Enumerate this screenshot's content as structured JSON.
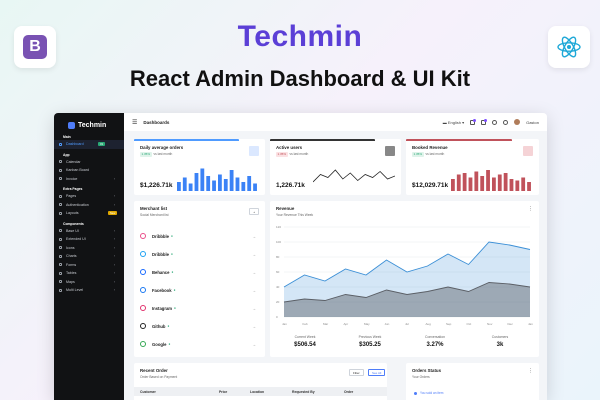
{
  "hero": {
    "title": "Techmin",
    "subtitle": "React Admin Dashboard & UI Kit"
  },
  "colors": {
    "accent": "#5b3fd6",
    "primary": "#4f7df9",
    "sidebar": "#111214",
    "bootstrap": "#7952b3",
    "react": "#1ea8d7",
    "danger": "#c0525b"
  },
  "corner_icons": [
    "bootstrap-icon",
    "react-icon"
  ],
  "sidebar": {
    "brand": "Techmin",
    "sections": [
      {
        "title": "Main",
        "items": [
          {
            "label": "Dashboard",
            "active": true,
            "badge": "03"
          }
        ]
      },
      {
        "title": "App",
        "items": [
          {
            "label": "Calendar"
          },
          {
            "label": "Kanban Board"
          },
          {
            "label": "Invoice",
            "chevron": true
          }
        ]
      },
      {
        "title": "Extra Pages",
        "items": [
          {
            "label": "Pages",
            "chevron": true
          },
          {
            "label": "Authentication",
            "chevron": true
          },
          {
            "label": "Layouts",
            "badge": "New"
          }
        ]
      },
      {
        "title": "Components",
        "items": [
          {
            "label": "Base UI",
            "chevron": true
          },
          {
            "label": "Extended UI",
            "chevron": true
          },
          {
            "label": "Icons",
            "chevron": true
          },
          {
            "label": "Charts",
            "chevron": true
          },
          {
            "label": "Forms",
            "chevron": true
          },
          {
            "label": "Tables",
            "chevron": true
          },
          {
            "label": "Maps",
            "chevron": true
          },
          {
            "label": "Multi Level",
            "chevron": true
          }
        ]
      }
    ]
  },
  "topbar": {
    "breadcrumb": "Dashboards",
    "language": "English",
    "user": "Gaston"
  },
  "kpis": [
    {
      "title": "Daily average orders",
      "delta": "1.35%",
      "delta_text": "vs last month",
      "value": "$1,226.71k",
      "bar_color": "#4f9bff",
      "icon_bg": "#dbe8ff",
      "chart": "bar",
      "chart_color": "#3b82f6",
      "up": true
    },
    {
      "title": "Active users",
      "delta": "1.35%",
      "delta_text": "vs last month",
      "value": "1,226.71k",
      "bar_color": "#333",
      "icon_bg": "#888",
      "chart": "line",
      "chart_color": "#222",
      "up": false
    },
    {
      "title": "Booked Revenue",
      "delta": "1.35%",
      "delta_text": "vs last month",
      "value": "$12,029.71k",
      "bar_color": "#c0525b",
      "icon_bg": "#f5d3d6",
      "chart": "bar",
      "chart_color": "#c0525b",
      "up": true
    }
  ],
  "merchants": {
    "title": "Merchant list",
    "subtitle": "Social Merchant list",
    "items": [
      {
        "name": "Dribbble",
        "icon": "dribbble-icon",
        "color": "#ea4c89"
      },
      {
        "name": "Dribbble",
        "icon": "twitter-icon",
        "color": "#1da1f2"
      },
      {
        "name": "Behance",
        "icon": "behance-icon",
        "color": "#1769ff"
      },
      {
        "name": "Facebook",
        "icon": "facebook-icon",
        "color": "#1877f2"
      },
      {
        "name": "Instagram",
        "icon": "instagram-icon",
        "color": "#e1306c"
      },
      {
        "name": "Github",
        "icon": "github-icon",
        "color": "#222"
      },
      {
        "name": "Google",
        "icon": "google-icon",
        "color": "#34a853"
      }
    ]
  },
  "revenue": {
    "title": "Revenue",
    "subtitle": "Your Revenue This Week",
    "stats": [
      {
        "label": "Current Week",
        "value": "$506.54"
      },
      {
        "label": "Previous Week",
        "value": "$305.25"
      },
      {
        "label": "Conversation",
        "value": "3.27%"
      },
      {
        "label": "Customers",
        "value": "3k"
      }
    ]
  },
  "chart_data": {
    "type": "area",
    "categories": [
      "Jan",
      "Feb",
      "Mar",
      "Apr",
      "May",
      "Jun",
      "Jul",
      "Aug",
      "Sep",
      "Oct",
      "Nov",
      "Dec",
      "Jan"
    ],
    "ylim": [
      0,
      120
    ],
    "yticks": [
      "0",
      "20",
      "40",
      "60",
      "80",
      "100",
      "120"
    ],
    "series": [
      {
        "color": "#3b8fd6",
        "values": [
          40,
          56,
          48,
          64,
          56,
          76,
          60,
          68,
          84,
          70,
          100,
          96,
          90
        ]
      },
      {
        "color": "#5b5f66",
        "values": [
          20,
          24,
          22,
          30,
          26,
          36,
          30,
          34,
          40,
          34,
          46,
          44,
          40
        ]
      }
    ],
    "grid": true
  },
  "kpi_charts": {
    "bars1": [
      30,
      45,
      25,
      60,
      75,
      50,
      35,
      55,
      40,
      70,
      45,
      30,
      50,
      25
    ],
    "line2": [
      30,
      55,
      45,
      70,
      40,
      60,
      35,
      55,
      45,
      65,
      40,
      50
    ],
    "bars3": [
      40,
      55,
      60,
      45,
      65,
      50,
      70,
      45,
      55,
      60,
      40,
      35,
      45,
      30
    ]
  },
  "orders": {
    "title": "Recent Order",
    "subtitle": "Order Based on Payment",
    "filter": "Filter",
    "see_all": "See All",
    "columns": [
      "Customer",
      "Price",
      "Location",
      "Requested By",
      "Order"
    ]
  },
  "orders_status": {
    "title": "Orders Status",
    "subtitle": "Your Orders",
    "item": "You sold an item"
  }
}
